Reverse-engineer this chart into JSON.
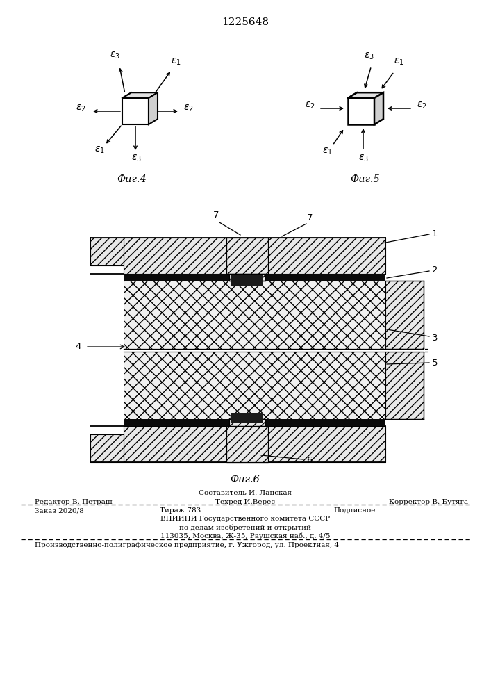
{
  "title": "1225648",
  "title_fontsize": 11,
  "bg_color": "#ffffff",
  "fig4_caption": "Фиг.4",
  "fig5_caption": "Фиг.5",
  "fig6_caption": "Фиг.6",
  "footer_sestavitel": "Составитель И. Ланская",
  "footer_tekhred": "Техред И.Верес",
  "footer_editor": "Редактор В. Петраш",
  "footer_korrektor": "Корректор В. Бутяга",
  "footer_zakaz": "Заказ 2020/8",
  "footer_tirazh": "Тираж 783",
  "footer_podpisnoe": "Подписное",
  "footer_vniipи": "ВНИИПИ Государственного комитета СССР",
  "footer_po_delam": "по делам изобретений и открытий",
  "footer_address": "113035, Москва, Ж-35, Раушская наб., д. 4/5",
  "footer_proizv": "Производственно-полиграфическое предприятие, г. Ужгород, ул. Проектная, 4"
}
